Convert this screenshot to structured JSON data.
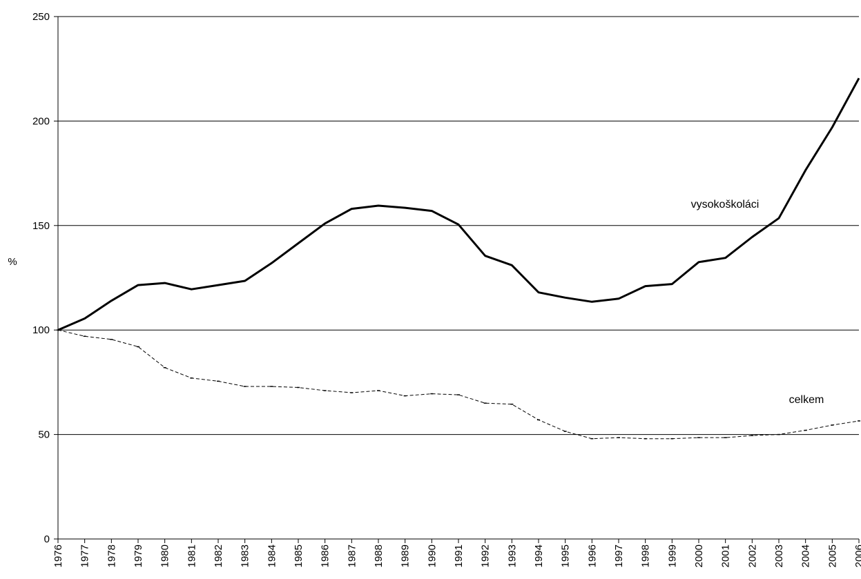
{
  "chart_data": {
    "type": "line",
    "ylabel": "%",
    "ylim": [
      0,
      250
    ],
    "yticks": [
      0,
      50,
      100,
      150,
      200,
      250
    ],
    "grid": true,
    "x": [
      "1976",
      "1977",
      "1978",
      "1979",
      "1980",
      "1981",
      "1982",
      "1983",
      "1984",
      "1985",
      "1986",
      "1987",
      "1988",
      "1989",
      "1990",
      "1991",
      "1992",
      "1993",
      "1994",
      "1995",
      "1996",
      "1997",
      "1998",
      "1999",
      "2000",
      "2001",
      "2002",
      "2003",
      "2004",
      "2005",
      "2006"
    ],
    "series": [
      {
        "name": "vysokoškoláci",
        "color": "#000000",
        "style": "solid-thick",
        "values": [
          100,
          105.5,
          114,
          121.5,
          122.5,
          119.5,
          121.5,
          123.5,
          132,
          141.5,
          151,
          158,
          159.5,
          158.5,
          157,
          150.5,
          135.5,
          131,
          118,
          115.5,
          113.5,
          115,
          121,
          122,
          132.5,
          134.5,
          144.5,
          153.5,
          176.5,
          197,
          220.5
        ]
      },
      {
        "name": "celkem",
        "color": "#000000",
        "style": "dashed-thin",
        "values": [
          100,
          97,
          95.5,
          92,
          82,
          77,
          75.5,
          73,
          73,
          72.5,
          71,
          70,
          71,
          68.5,
          69.5,
          69,
          65,
          64.5,
          57,
          51.5,
          48,
          48.5,
          48,
          48,
          48.5,
          48.5,
          49.5,
          50,
          52,
          54.5,
          56.5
        ]
      }
    ]
  }
}
